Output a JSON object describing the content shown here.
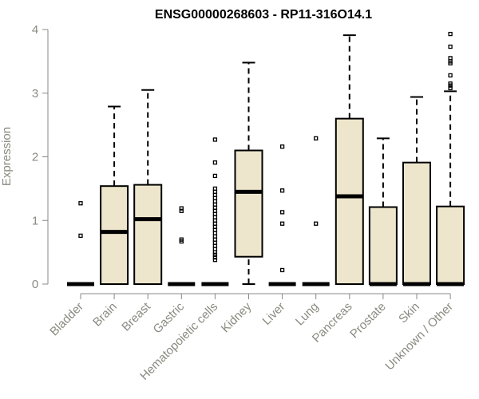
{
  "chart_data": {
    "type": "boxplot",
    "title": "ENSG00000268603 - RP11-316O14.1",
    "xlabel": "",
    "ylabel": "Expression",
    "ylim": [
      0,
      4
    ],
    "yticks": [
      "0",
      "1",
      "2",
      "3",
      "4"
    ],
    "grid": false,
    "box_color": "#ede6cc",
    "categories": [
      "Bladder",
      "Brain",
      "Breast",
      "Gastric",
      "Hematopoietic cells",
      "Kidney",
      "Liver",
      "Lung",
      "Pancreas",
      "Prostate",
      "Skin",
      "Unknown / Other"
    ],
    "boxes": [
      {
        "min": 0,
        "q1": 0,
        "median": 0,
        "q3": 0,
        "max": 0,
        "outliers": [
          0.76,
          1.27
        ]
      },
      {
        "min": 0,
        "q1": 0,
        "median": 0.82,
        "q3": 1.54,
        "max": 2.79,
        "outliers": []
      },
      {
        "min": 0,
        "q1": 0,
        "median": 1.02,
        "q3": 1.56,
        "max": 3.05,
        "outliers": []
      },
      {
        "min": 0,
        "q1": 0,
        "median": 0,
        "q3": 0,
        "max": 0,
        "outliers": [
          0.67,
          0.7,
          1.15,
          1.19
        ]
      },
      {
        "min": 0,
        "q1": 0,
        "median": 0,
        "q3": 0,
        "max": 0,
        "outliers": [
          0.38,
          0.42,
          0.46,
          0.5,
          0.55,
          0.6,
          0.65,
          0.7,
          0.75,
          0.8,
          0.85,
          0.9,
          0.95,
          1.0,
          1.05,
          1.1,
          1.15,
          1.2,
          1.25,
          1.3,
          1.35,
          1.4,
          1.45,
          1.5,
          1.7,
          1.91,
          2.27
        ]
      },
      {
        "min": 0,
        "q1": 0.43,
        "median": 1.45,
        "q3": 2.1,
        "max": 3.48,
        "outliers": []
      },
      {
        "min": 0,
        "q1": 0,
        "median": 0,
        "q3": 0,
        "max": 0,
        "outliers": [
          0.22,
          0.95,
          1.13,
          1.47,
          2.16
        ]
      },
      {
        "min": 0,
        "q1": 0,
        "median": 0,
        "q3": 0,
        "max": 0,
        "outliers": [
          0.95,
          2.29
        ]
      },
      {
        "min": 0,
        "q1": 0,
        "median": 1.38,
        "q3": 2.6,
        "max": 3.91,
        "outliers": []
      },
      {
        "min": 0,
        "q1": 0,
        "median": 0,
        "q3": 1.21,
        "max": 2.29,
        "outliers": []
      },
      {
        "min": 0,
        "q1": 0,
        "median": 0,
        "q3": 1.91,
        "max": 2.94,
        "outliers": []
      },
      {
        "min": 0,
        "q1": 0,
        "median": 0,
        "q3": 1.22,
        "max": 3.03,
        "outliers": [
          3.08,
          3.12,
          3.15,
          3.28,
          3.47,
          3.5,
          3.55,
          3.73,
          3.93
        ]
      }
    ]
  }
}
